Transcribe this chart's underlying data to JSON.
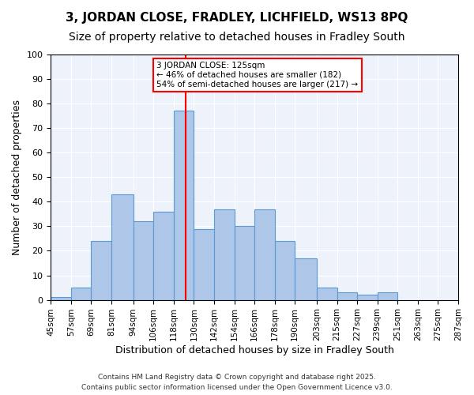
{
  "title1": "3, JORDAN CLOSE, FRADLEY, LICHFIELD, WS13 8PQ",
  "title2": "Size of property relative to detached houses in Fradley South",
  "xlabel": "Distribution of detached houses by size in Fradley South",
  "ylabel": "Number of detached properties",
  "bin_edges": [
    45,
    57,
    69,
    81,
    94,
    106,
    118,
    130,
    142,
    154,
    166,
    178,
    190,
    203,
    215,
    227,
    239,
    251,
    263,
    275,
    287
  ],
  "bar_heights": [
    1,
    5,
    24,
    43,
    32,
    36,
    77,
    29,
    37,
    30,
    37,
    24,
    17,
    5,
    3,
    2,
    3,
    0,
    0,
    0
  ],
  "bar_color": "#aec6e8",
  "bar_edge_color": "#5b9bd5",
  "vline_x": 125,
  "vline_color": "red",
  "ylim": [
    0,
    100
  ],
  "yticks": [
    0,
    10,
    20,
    30,
    40,
    50,
    60,
    70,
    80,
    90,
    100
  ],
  "annotation_title": "3 JORDAN CLOSE: 125sqm",
  "annotation_line1": "← 46% of detached houses are smaller (182)",
  "annotation_line2": "54% of semi-detached houses are larger (217) →",
  "annotation_box_color": "white",
  "annotation_box_edge": "red",
  "footer1": "Contains HM Land Registry data © Crown copyright and database right 2025.",
  "footer2": "Contains public sector information licensed under the Open Government Licence v3.0.",
  "background_color": "#eef3fb",
  "grid_color": "white",
  "title_fontsize": 11,
  "subtitle_fontsize": 10,
  "tick_label_fontsize": 7.5,
  "axis_label_fontsize": 9
}
